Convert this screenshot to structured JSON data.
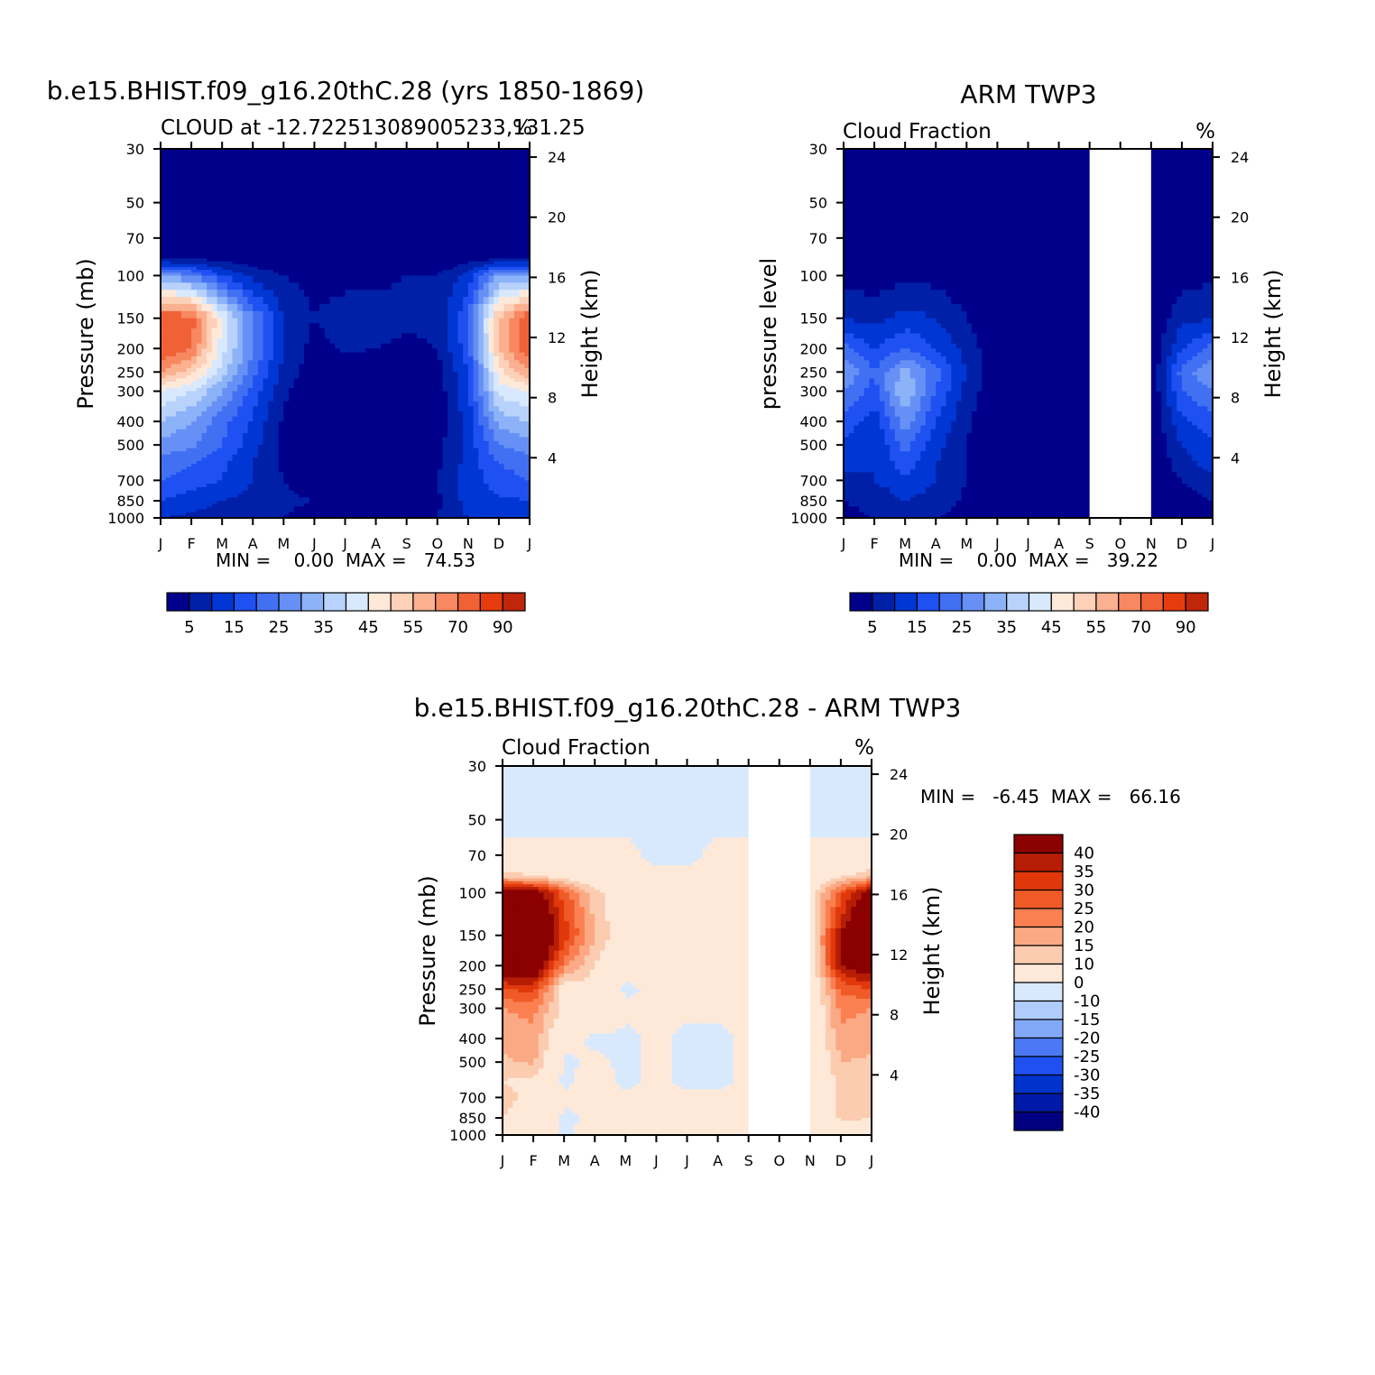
{
  "colors": {
    "cloud_scale": [
      "#00008b",
      "#0020a8",
      "#0036d4",
      "#1f50f2",
      "#4270f3",
      "#6690f5",
      "#8cb2f8",
      "#b8d2fb",
      "#d9e9fd",
      "#fee9d9",
      "#fdd0b8",
      "#fbb08f",
      "#f78861",
      "#f16136",
      "#e63c0d",
      "#c0260a",
      "#8b0000"
    ],
    "diff_scale": [
      "#000080",
      "#0019a8",
      "#0033cc",
      "#1f50f2",
      "#4c78f5",
      "#82a8f8",
      "#b0ccfa",
      "#d9e9fd",
      "#fee9d9",
      "#fcccb0",
      "#fba984",
      "#fb8051",
      "#ef5a27",
      "#e0380b",
      "#b51d05",
      "#8b0000"
    ]
  },
  "chart_data": [
    {
      "type": "heatmap",
      "title": "b.e15.BHIST.f09_g16.20thC.28 (yrs 1850-1869)",
      "subtitle_left": "CLOUD at -12.722513089005233,131.25",
      "subtitle_right": "%",
      "ylabel": "Pressure (mb)",
      "y2label": "Height (km)",
      "months": [
        "J",
        "F",
        "M",
        "A",
        "M",
        "J",
        "J",
        "A",
        "S",
        "O",
        "N",
        "D",
        "J"
      ],
      "pressure_ticks": [
        "30",
        "50",
        "70",
        "100",
        "150",
        "200",
        "250",
        "300",
        "400",
        "500",
        "700",
        "850",
        "1000"
      ],
      "height_ticks": [
        "24",
        "20",
        "16",
        "12",
        "8",
        "4"
      ],
      "min_max_text": "MIN =    0.00  MAX =   74.53",
      "colorbar_labels": [
        "5",
        "15",
        "25",
        "35",
        "45",
        "55",
        "70",
        "90"
      ],
      "grid_levels_mb": [
        30,
        50,
        70,
        85,
        100,
        150,
        200,
        250,
        300,
        400,
        500,
        600,
        700,
        850,
        1000
      ],
      "values": [
        [
          0,
          0,
          0,
          0,
          0,
          0,
          0,
          0,
          0,
          0,
          0,
          0,
          0
        ],
        [
          0,
          0,
          0,
          0,
          0,
          0,
          0,
          0,
          0,
          0,
          0,
          0,
          0
        ],
        [
          0,
          0,
          0,
          0,
          0,
          0,
          0,
          0,
          0,
          0,
          0,
          0,
          0
        ],
        [
          4,
          4,
          3,
          2,
          1,
          0,
          0,
          0,
          0,
          0,
          2,
          4,
          4
        ],
        [
          30,
          25,
          15,
          8,
          5,
          3,
          3,
          4,
          5,
          5,
          12,
          30,
          30
        ],
        [
          70,
          68,
          45,
          25,
          10,
          5,
          8,
          7,
          6,
          6,
          20,
          55,
          70
        ],
        [
          70,
          65,
          42,
          25,
          10,
          3,
          6,
          5,
          4,
          5,
          18,
          55,
          70
        ],
        [
          60,
          52,
          38,
          22,
          8,
          2,
          1,
          1,
          1,
          3,
          15,
          48,
          60
        ],
        [
          45,
          40,
          30,
          18,
          6,
          1,
          0,
          0,
          0,
          2,
          14,
          42,
          45
        ],
        [
          35,
          30,
          22,
          14,
          4,
          1,
          0,
          0,
          0,
          2,
          12,
          32,
          35
        ],
        [
          28,
          26,
          20,
          12,
          4,
          1,
          0,
          0,
          0,
          3,
          12,
          25,
          28
        ],
        [
          22,
          20,
          16,
          10,
          4,
          1,
          0,
          0,
          0,
          4,
          12,
          20,
          22
        ],
        [
          20,
          18,
          15,
          10,
          5,
          2,
          0,
          0,
          0,
          5,
          12,
          18,
          20
        ],
        [
          15,
          12,
          10,
          8,
          6,
          5,
          4,
          3,
          1,
          4,
          12,
          14,
          15
        ],
        [
          10,
          9,
          8,
          7,
          5,
          3,
          2,
          1,
          1,
          5,
          10,
          10,
          10
        ]
      ]
    },
    {
      "type": "heatmap",
      "title": "ARM TWP3",
      "subtitle_left": "Cloud Fraction",
      "subtitle_right": "%",
      "ylabel": "pressure level",
      "y2label": "Height (km)",
      "months": [
        "J",
        "F",
        "M",
        "A",
        "M",
        "J",
        "J",
        "A",
        "S",
        "O",
        "N",
        "D",
        "J"
      ],
      "pressure_ticks": [
        "30",
        "50",
        "70",
        "100",
        "150",
        "200",
        "250",
        "300",
        "400",
        "500",
        "700",
        "850",
        "1000"
      ],
      "height_ticks": [
        "24",
        "20",
        "16",
        "12",
        "8",
        "4"
      ],
      "min_max_text": "MIN =    0.00  MAX =   39.22",
      "colorbar_labels": [
        "5",
        "15",
        "25",
        "35",
        "45",
        "55",
        "70",
        "90"
      ],
      "missing_months": [
        "S",
        "O",
        "N"
      ],
      "grid_levels_mb": [
        30,
        50,
        70,
        85,
        100,
        150,
        200,
        250,
        300,
        400,
        500,
        600,
        700,
        850,
        1000
      ],
      "values": [
        [
          0,
          0,
          0,
          0,
          0,
          0,
          0,
          0,
          0,
          0,
          0,
          0,
          0
        ],
        [
          0,
          0,
          0,
          0,
          0,
          0,
          0,
          0,
          0,
          0,
          0,
          0,
          0
        ],
        [
          0,
          0,
          0,
          0,
          0,
          0,
          0,
          0,
          0,
          0,
          0,
          0,
          0
        ],
        [
          0,
          0,
          0,
          0,
          0,
          0,
          0,
          0,
          0,
          0,
          0,
          0,
          0
        ],
        [
          3,
          2,
          4,
          3,
          1,
          0,
          0,
          0,
          0,
          0,
          0,
          3,
          4
        ],
        [
          10,
          8,
          12,
          10,
          5,
          0,
          0,
          0,
          0,
          0,
          0,
          8,
          10
        ],
        [
          22,
          15,
          20,
          15,
          8,
          1,
          0,
          0,
          0,
          0,
          0,
          15,
          22
        ],
        [
          30,
          20,
          32,
          22,
          10,
          1,
          0,
          0,
          0,
          0,
          0,
          22,
          30
        ],
        [
          25,
          18,
          35,
          20,
          8,
          1,
          0,
          0,
          0,
          0,
          0,
          20,
          25
        ],
        [
          18,
          12,
          28,
          15,
          6,
          0,
          0,
          0,
          0,
          0,
          0,
          14,
          18
        ],
        [
          14,
          10,
          22,
          12,
          5,
          0,
          0,
          0,
          0,
          0,
          0,
          10,
          14
        ],
        [
          12,
          10,
          18,
          10,
          5,
          0,
          0,
          0,
          0,
          0,
          0,
          8,
          12
        ],
        [
          8,
          10,
          14,
          10,
          5,
          1,
          0,
          0,
          0,
          0,
          0,
          5,
          8
        ],
        [
          5,
          6,
          10,
          8,
          4,
          2,
          0,
          0,
          0,
          0,
          0,
          3,
          5
        ],
        [
          4,
          5,
          6,
          5,
          3,
          1,
          0,
          0,
          0,
          0,
          0,
          3,
          4
        ]
      ]
    },
    {
      "type": "heatmap",
      "title": "b.e15.BHIST.f09_g16.20thC.28 - ARM TWP3",
      "subtitle_left": "Cloud Fraction",
      "subtitle_right": "%",
      "ylabel": "Pressure (mb)",
      "y2label": "Height (km)",
      "months": [
        "J",
        "F",
        "M",
        "A",
        "M",
        "J",
        "J",
        "A",
        "S",
        "O",
        "N",
        "D",
        "J"
      ],
      "pressure_ticks": [
        "30",
        "50",
        "70",
        "100",
        "150",
        "200",
        "250",
        "300",
        "400",
        "500",
        "700",
        "850",
        "1000"
      ],
      "height_ticks": [
        "24",
        "20",
        "16",
        "12",
        "8",
        "4"
      ],
      "min_max_text": "MIN =   -6.45  MAX =   66.16",
      "colorbar_labels": [
        "40",
        "35",
        "30",
        "25",
        "20",
        "15",
        "10",
        "0",
        "-10",
        "-15",
        "-20",
        "-25",
        "-30",
        "-35",
        "-40"
      ],
      "missing_months": [
        "S",
        "O",
        "N"
      ],
      "grid_levels_mb": [
        30,
        50,
        70,
        85,
        100,
        150,
        200,
        250,
        300,
        400,
        500,
        600,
        700,
        850,
        1000
      ],
      "values": [
        [
          -1,
          -1,
          -1,
          -1,
          -1,
          -1,
          -1,
          -1,
          -1,
          -1,
          -1,
          -1,
          -1
        ],
        [
          -1,
          -1,
          -1,
          -1,
          -1,
          -1,
          -1,
          -1,
          -1,
          -1,
          -1,
          -1,
          -1
        ],
        [
          1,
          1,
          1,
          1,
          1,
          -1,
          -1,
          1,
          1,
          1,
          1,
          1,
          1
        ],
        [
          12,
          10,
          5,
          2,
          1,
          1,
          1,
          1,
          1,
          1,
          1,
          8,
          14
        ],
        [
          45,
          45,
          28,
          12,
          4,
          3,
          3,
          4,
          5,
          5,
          5,
          28,
          45
        ],
        [
          60,
          60,
          33,
          15,
          5,
          5,
          8,
          7,
          6,
          6,
          6,
          40,
          60
        ],
        [
          48,
          50,
          22,
          10,
          2,
          2,
          6,
          5,
          4,
          5,
          5,
          40,
          48
        ],
        [
          30,
          32,
          6,
          7,
          -1,
          1,
          1,
          1,
          1,
          1,
          1,
          26,
          30
        ],
        [
          20,
          22,
          8,
          8,
          1,
          1,
          1,
          1,
          1,
          1,
          1,
          22,
          20
        ],
        [
          17,
          18,
          2,
          -1,
          -1,
          1,
          -1,
          -1,
          1,
          1,
          1,
          18,
          17
        ],
        [
          14,
          16,
          -1,
          1,
          -1,
          1,
          -1,
          -1,
          1,
          1,
          1,
          15,
          14
        ],
        [
          10,
          8,
          -1,
          2,
          -1,
          1,
          -1,
          -1,
          1,
          1,
          1,
          12,
          10
        ],
        [
          12,
          8,
          1,
          1,
          1,
          1,
          1,
          1,
          1,
          1,
          1,
          13,
          12
        ],
        [
          10,
          6,
          -1,
          1,
          2,
          3,
          4,
          3,
          1,
          1,
          1,
          11,
          10
        ],
        [
          6,
          4,
          -1,
          2,
          2,
          2,
          2,
          0,
          0,
          0,
          0,
          7,
          6
        ]
      ]
    }
  ]
}
